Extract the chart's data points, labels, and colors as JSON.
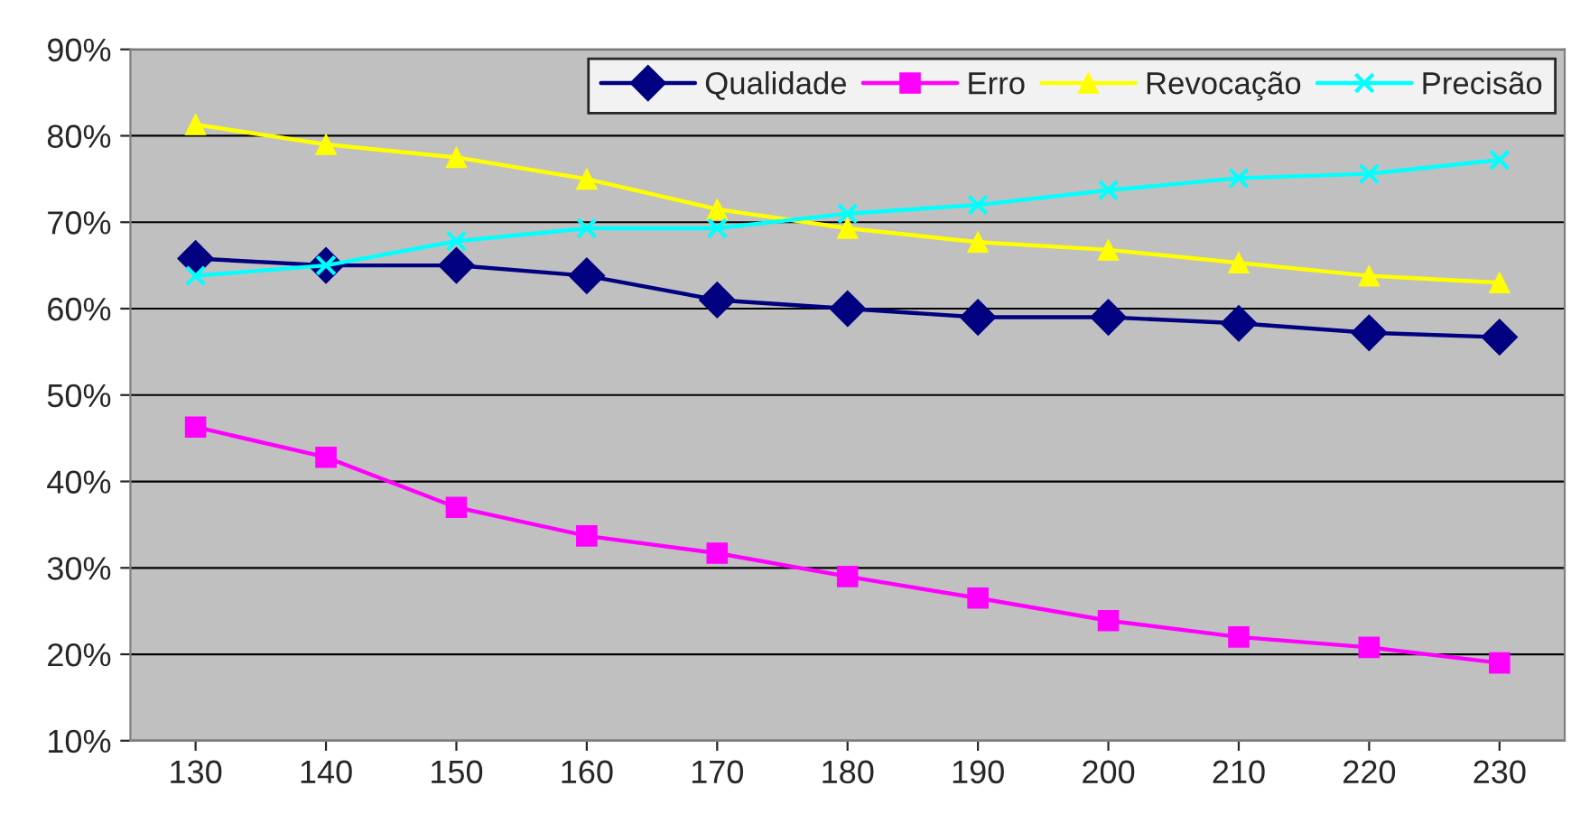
{
  "chart_data": {
    "type": "line",
    "categories": [
      "130",
      "140",
      "150",
      "160",
      "170",
      "180",
      "190",
      "200",
      "210",
      "220",
      "230"
    ],
    "series": [
      {
        "name": "Qualidade",
        "color": "#000080",
        "marker": "diamond",
        "values": [
          65.8,
          65,
          65,
          63.8,
          61,
          60,
          59,
          59,
          58.3,
          57.2,
          56.7
        ]
      },
      {
        "name": "Erro",
        "color": "#ff00ff",
        "marker": "square",
        "values": [
          46.3,
          42.8,
          37,
          33.7,
          31.7,
          29,
          26.5,
          23.9,
          22,
          20.8,
          19
        ]
      },
      {
        "name": "Revocação",
        "color": "#ffff00",
        "marker": "triangle",
        "values": [
          81.3,
          79,
          77.5,
          75,
          71.5,
          69.3,
          67.7,
          66.8,
          65.3,
          63.8,
          63
        ]
      },
      {
        "name": "Precisão",
        "color": "#00ffff",
        "marker": "cross",
        "values": [
          63.8,
          65,
          67.8,
          69.3,
          69.3,
          71,
          72,
          73.7,
          75.1,
          75.6,
          77.2
        ]
      }
    ],
    "ylim": [
      10,
      90
    ],
    "yticks": [
      {
        "value": 10,
        "label": "10%"
      },
      {
        "value": 20,
        "label": "20%"
      },
      {
        "value": 30,
        "label": "30%"
      },
      {
        "value": 40,
        "label": "40%"
      },
      {
        "value": 50,
        "label": "50%"
      },
      {
        "value": 60,
        "label": "60%"
      },
      {
        "value": 70,
        "label": "70%"
      },
      {
        "value": 80,
        "label": "80%"
      },
      {
        "value": 90,
        "label": "90%"
      }
    ],
    "grid": "y",
    "legend": "top right",
    "line_style": "solid"
  }
}
